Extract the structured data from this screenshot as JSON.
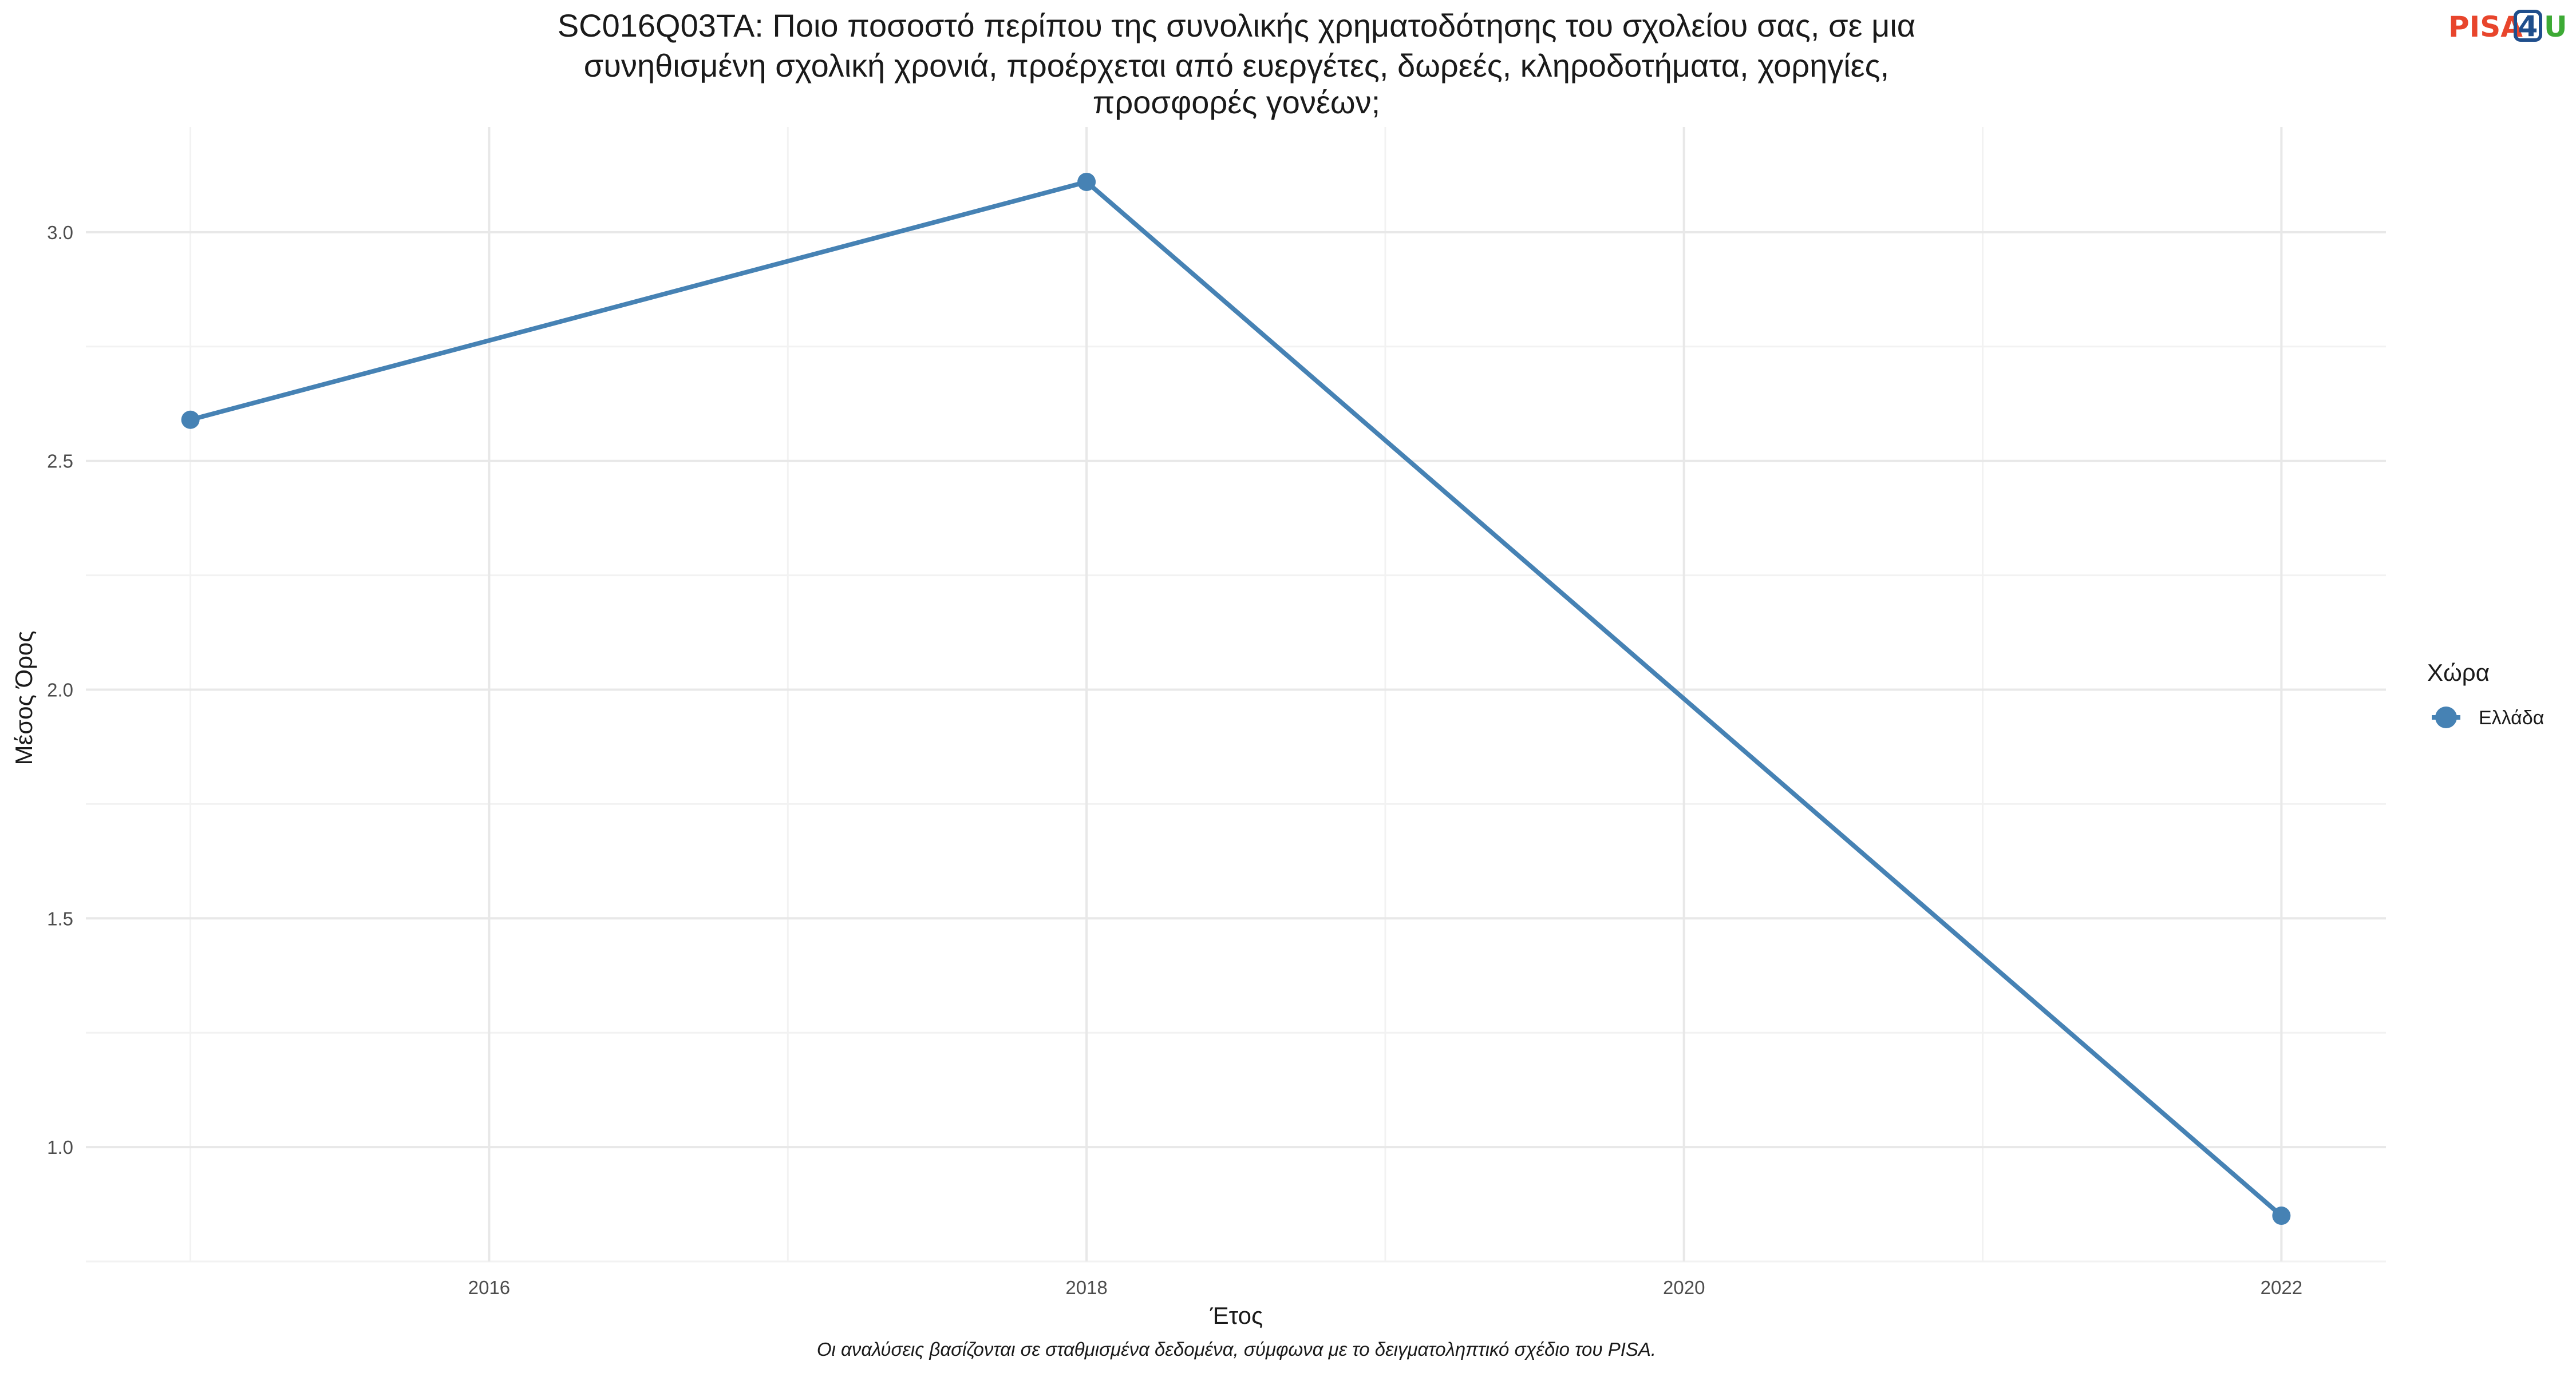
{
  "chart_data": {
    "type": "line",
    "title": [
      "SC016Q03TA: Ποιο ποσοστό περίπου της συνολικής χρηματοδότησης του σχολείου σας, σε μια",
      "συνηθισμένη σχολική χρονιά, προέρχεται από ευεργέτες, δωρεές, κληροδοτήματα, χορηγίες,",
      "προσφορές γονέων;"
    ],
    "xlabel": "Έτος",
    "ylabel": "Μέσος Όρος",
    "xlim": [
      2014.65,
      2022.35
    ],
    "ylim": [
      0.75,
      3.23
    ],
    "x_ticks": [
      2016,
      2018,
      2020,
      2022
    ],
    "x_ticks_minor": [
      2015,
      2017,
      2019,
      2021
    ],
    "y_ticks": [
      1.0,
      1.5,
      2.0,
      2.5,
      3.0
    ],
    "y_ticks_minor": [
      0.75,
      1.25,
      1.75,
      2.25,
      2.75
    ],
    "grid": true,
    "legend": {
      "title": "Χώρα",
      "position": "right"
    },
    "series": [
      {
        "name": "Ελλάδα",
        "color": "#4682B4",
        "x": [
          2015,
          2018,
          2022
        ],
        "y": [
          2.59,
          3.11,
          0.85
        ]
      }
    ],
    "caption": "Οι αναλύσεις βασίζονται σε σταθμισμένα δεδομένα, σύμφωνα με το δειγματοληπτικό σχέδιο του PISA."
  },
  "logo": {
    "part1": "PISA",
    "part2": "4",
    "part3": "U",
    "colors": {
      "part1": "#E8452C",
      "part2": "#1F4E8C",
      "part3": "#3DAA35"
    }
  }
}
